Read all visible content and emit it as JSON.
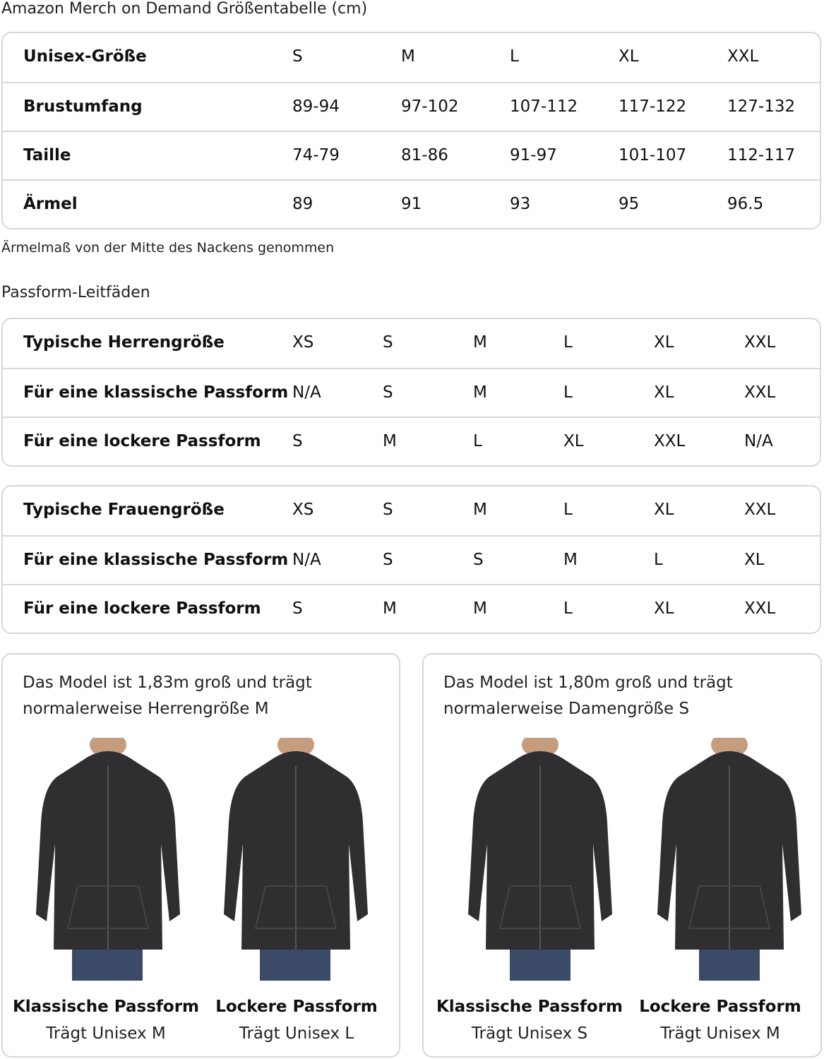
{
  "title": "Amazon Merch on Demand Größentabelle (cm)",
  "unisex_table": {
    "rows": [
      {
        "label": "Unisex-Größe",
        "values": [
          "S",
          "M",
          "L",
          "XL",
          "XXL"
        ]
      },
      {
        "label": "Brustumfang",
        "values": [
          "89-94",
          "97-102",
          "107-112",
          "117-122",
          "127-132"
        ]
      },
      {
        "label": "Taille",
        "values": [
          "74-79",
          "81-86",
          "91-97",
          "101-107",
          "112-117"
        ]
      },
      {
        "label": "Ärmel",
        "values": [
          "89",
          "91",
          "93",
          "95",
          "96.5"
        ]
      }
    ]
  },
  "note": "Ärmelmaß von der Mitte des Nackens genommen",
  "fit_title": "Passform-Leitfäden",
  "men_table": {
    "rows": [
      {
        "label": "Typische Herrengröße",
        "values": [
          "XS",
          "S",
          "M",
          "L",
          "XL",
          "XXL"
        ]
      },
      {
        "label": "Für eine klassische Passform",
        "values": [
          "N/A",
          "S",
          "M",
          "L",
          "XL",
          "XXL"
        ]
      },
      {
        "label": "Für eine lockere Passform",
        "values": [
          "S",
          "M",
          "L",
          "XL",
          "XXL",
          "N/A"
        ]
      }
    ]
  },
  "women_table": {
    "rows": [
      {
        "label": "Typische Frauengröße",
        "values": [
          "XS",
          "S",
          "M",
          "L",
          "XL",
          "XXL"
        ]
      },
      {
        "label": "Für eine klassische Passform",
        "values": [
          "N/A",
          "S",
          "S",
          "M",
          "L",
          "XL"
        ]
      },
      {
        "label": "Für eine lockere Passform",
        "values": [
          "S",
          "M",
          "M",
          "L",
          "XL",
          "XXL"
        ]
      }
    ]
  },
  "cards": [
    {
      "desc": "Das Model ist 1,83m groß und trägt normalerweise Herrengröße M",
      "photos": [
        {
          "title": "Klassische Passform",
          "caption": "Trägt Unisex M"
        },
        {
          "title": "Lockere Passform",
          "caption": "Trägt Unisex L"
        }
      ]
    },
    {
      "desc": "Das Model ist 1,80m groß und trägt normalerweise Damengröße S",
      "photos": [
        {
          "title": "Klassische Passform",
          "caption": "Trägt Unisex S"
        },
        {
          "title": "Lockere Passform",
          "caption": "Trägt Unisex M"
        }
      ]
    }
  ],
  "colors": {
    "border": "#d5d9d9",
    "hoodie": "#2f2f31",
    "jeans": "#3b4a66"
  }
}
